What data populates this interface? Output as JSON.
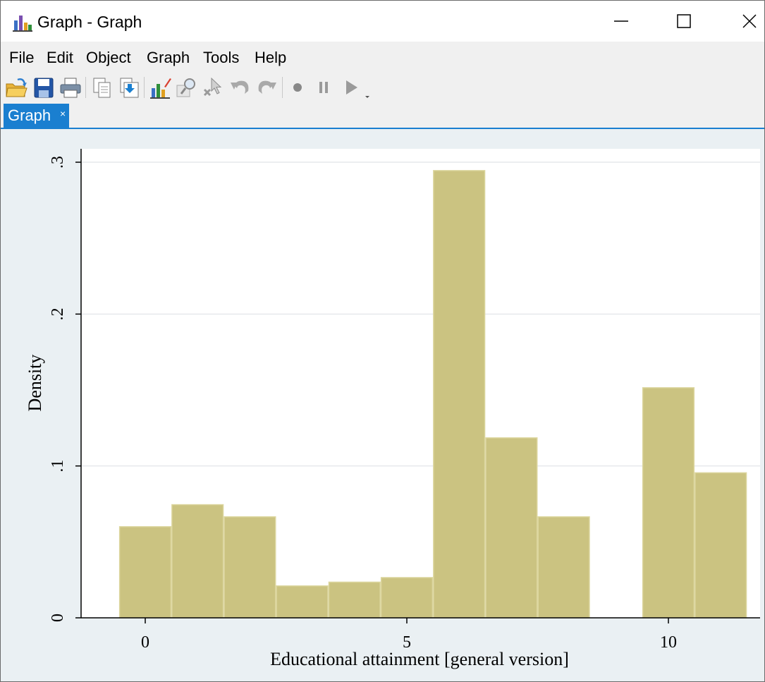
{
  "window": {
    "title": "Graph - Graph",
    "icon": "bar-chart-icon"
  },
  "menu": [
    "File",
    "Edit",
    "Object",
    "Graph",
    "Tools",
    "Help"
  ],
  "toolbar": {
    "icons": [
      "open-icon",
      "save-icon",
      "print-icon",
      "copy-icon",
      "copy-to-icon",
      "graph-editor-icon",
      "zoom-icon",
      "pointer-icon",
      "undo-icon",
      "redo-icon",
      "record-icon",
      "pause-icon",
      "play-icon"
    ]
  },
  "tab": {
    "label": "Graph",
    "close": "×"
  },
  "colors": {
    "accent": "#1a7fd0",
    "bar_fill": "#cbc381",
    "bar_stroke": "#dcd69e",
    "plot_bg": "#ffffff",
    "graph_bg": "#eaf0f3"
  },
  "chart_data": {
    "type": "bar",
    "title": "",
    "xlabel": "Educational attainment [general version]",
    "ylabel": "Density",
    "xlim": [
      -1.2,
      11.3
    ],
    "ylim": [
      0,
      0.3
    ],
    "x_ticks": [
      0,
      5,
      10
    ],
    "x_tick_labels": [
      "0",
      "5",
      "10"
    ],
    "y_ticks": [
      0,
      0.1,
      0.2,
      0.3
    ],
    "y_tick_labels": [
      "0",
      ".1",
      ".2",
      ".3"
    ],
    "grid": "horizontal",
    "bins": [
      {
        "start": -0.5,
        "end": 0.5,
        "value": 0.06
      },
      {
        "start": 0.5,
        "end": 1.5,
        "value": 0.0745
      },
      {
        "start": 1.5,
        "end": 2.5,
        "value": 0.0665
      },
      {
        "start": 2.5,
        "end": 3.5,
        "value": 0.021
      },
      {
        "start": 3.5,
        "end": 4.5,
        "value": 0.0235
      },
      {
        "start": 4.5,
        "end": 5.5,
        "value": 0.0265
      },
      {
        "start": 5.5,
        "end": 6.5,
        "value": 0.2945
      },
      {
        "start": 6.5,
        "end": 7.5,
        "value": 0.1185
      },
      {
        "start": 7.5,
        "end": 8.5,
        "value": 0.0665
      },
      {
        "start": 9.5,
        "end": 10.5,
        "value": 0.1515
      },
      {
        "start": 10.5,
        "end": 11.5,
        "value": 0.0955
      }
    ]
  }
}
